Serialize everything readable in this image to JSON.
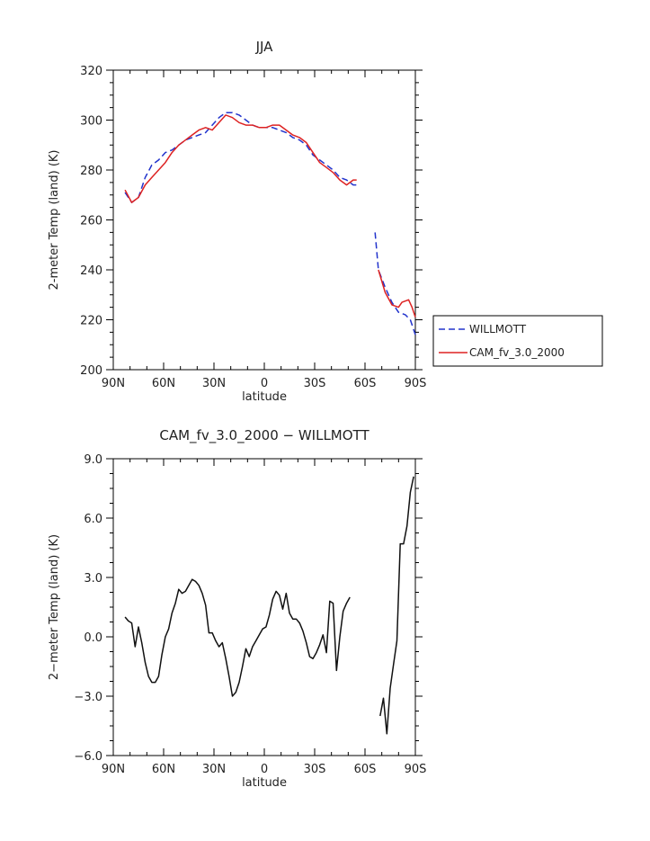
{
  "chart_data": [
    {
      "type": "line",
      "title": "JJA",
      "xlabel": "latitude",
      "ylabel": "2-meter Temp (land) (K)",
      "xlim": [
        90,
        -90
      ],
      "ylim": [
        200,
        320
      ],
      "x_ticks": [
        90,
        60,
        30,
        0,
        -30,
        -60,
        -90
      ],
      "x_tick_labels": [
        "90N",
        "60N",
        "30N",
        "0",
        "30S",
        "60S",
        "90S"
      ],
      "y_ticks": [
        200,
        220,
        240,
        260,
        280,
        300,
        320
      ],
      "y_tick_labels": [
        "200",
        "220",
        "240",
        "260",
        "280",
        "300",
        "320"
      ],
      "legend": "right",
      "series": [
        {
          "name": "WILLMOTT",
          "color": "#2233cc",
          "dash": "dashed",
          "segments": [
            [
              [
                83,
                271
              ],
              [
                79,
                267
              ],
              [
                75,
                269
              ],
              [
                71,
                277
              ],
              [
                67,
                282
              ],
              [
                63,
                284
              ],
              [
                59,
                287
              ],
              [
                55,
                288
              ],
              [
                51,
                290
              ],
              [
                47,
                292
              ],
              [
                43,
                293
              ],
              [
                39,
                294
              ],
              [
                35,
                295
              ],
              [
                31,
                298
              ],
              [
                27,
                301
              ],
              [
                23,
                303
              ],
              [
                19,
                303
              ],
              [
                15,
                302
              ],
              [
                11,
                300
              ],
              [
                7,
                298
              ],
              [
                3,
                297
              ],
              [
                -1,
                297
              ],
              [
                -5,
                297
              ],
              [
                -9,
                296
              ],
              [
                -13,
                295
              ],
              [
                -17,
                293
              ],
              [
                -21,
                292
              ],
              [
                -25,
                290
              ],
              [
                -29,
                286
              ],
              [
                -33,
                284
              ],
              [
                -37,
                282
              ],
              [
                -41,
                280
              ],
              [
                -45,
                277
              ],
              [
                -49,
                276
              ],
              [
                -53,
                274
              ],
              [
                -55,
                274
              ]
            ],
            [
              [
                -66,
                255
              ],
              [
                -68,
                240
              ],
              [
                -72,
                233
              ],
              [
                -76,
                227
              ],
              [
                -80,
                223
              ],
              [
                -84,
                222
              ],
              [
                -87,
                220
              ],
              [
                -90,
                214
              ]
            ]
          ]
        },
        {
          "name": "CAM_fv_3.0_2000",
          "color": "#dd2222",
          "dash": "solid",
          "segments": [
            [
              [
                83,
                272
              ],
              [
                79,
                267
              ],
              [
                75,
                269
              ],
              [
                71,
                274
              ],
              [
                67,
                277
              ],
              [
                63,
                280
              ],
              [
                59,
                283
              ],
              [
                55,
                287
              ],
              [
                51,
                290
              ],
              [
                47,
                292
              ],
              [
                43,
                294
              ],
              [
                39,
                296
              ],
              [
                35,
                297
              ],
              [
                31,
                296
              ],
              [
                27,
                299
              ],
              [
                23,
                302
              ],
              [
                19,
                301
              ],
              [
                15,
                299
              ],
              [
                11,
                298
              ],
              [
                7,
                298
              ],
              [
                3,
                297
              ],
              [
                -1,
                297
              ],
              [
                -5,
                298
              ],
              [
                -9,
                298
              ],
              [
                -13,
                296
              ],
              [
                -17,
                294
              ],
              [
                -21,
                293
              ],
              [
                -25,
                291
              ],
              [
                -29,
                287
              ],
              [
                -33,
                283
              ],
              [
                -37,
                281
              ],
              [
                -41,
                279
              ],
              [
                -45,
                276
              ],
              [
                -49,
                274
              ],
              [
                -53,
                276
              ],
              [
                -55,
                276
              ]
            ],
            [
              [
                -68,
                240
              ],
              [
                -72,
                231
              ],
              [
                -76,
                226
              ],
              [
                -80,
                225
              ],
              [
                -82,
                227
              ],
              [
                -86,
                228
              ],
              [
                -88,
                225
              ],
              [
                -90,
                221
              ]
            ]
          ]
        }
      ]
    },
    {
      "type": "line",
      "title": "CAM_fv_3.0_2000 − WILLMOTT",
      "xlabel": "latitude",
      "ylabel": "2−meter Temp (land) (K)",
      "xlim": [
        90,
        -90
      ],
      "ylim": [
        -6,
        9
      ],
      "x_ticks": [
        90,
        60,
        30,
        0,
        -30,
        -60,
        -90
      ],
      "x_tick_labels": [
        "90N",
        "60N",
        "30N",
        "0",
        "30S",
        "60S",
        "90S"
      ],
      "y_ticks": [
        -6,
        -3,
        0,
        3,
        6,
        9
      ],
      "y_tick_labels": [
        "−6.0",
        "−3.0",
        "0.0",
        "3.0",
        "6.0",
        "9.0"
      ],
      "series": [
        {
          "color": "#111111",
          "dash": "solid",
          "segments": [
            [
              [
                83,
                1.0
              ],
              [
                81,
                0.8
              ],
              [
                79,
                0.7
              ],
              [
                77,
                -0.5
              ],
              [
                75,
                0.5
              ],
              [
                73,
                -0.3
              ],
              [
                71,
                -1.3
              ],
              [
                69,
                -2.0
              ],
              [
                67,
                -2.3
              ],
              [
                65,
                -2.3
              ],
              [
                63,
                -2.0
              ],
              [
                61,
                -0.9
              ],
              [
                59,
                0.0
              ],
              [
                57,
                0.4
              ],
              [
                55,
                1.2
              ],
              [
                53,
                1.7
              ],
              [
                51,
                2.4
              ],
              [
                49,
                2.2
              ],
              [
                47,
                2.3
              ],
              [
                45,
                2.6
              ],
              [
                43,
                2.9
              ],
              [
                41,
                2.8
              ],
              [
                39,
                2.6
              ],
              [
                37,
                2.2
              ],
              [
                35,
                1.6
              ],
              [
                33,
                0.2
              ],
              [
                31,
                0.2
              ],
              [
                29,
                -0.2
              ],
              [
                27,
                -0.5
              ],
              [
                25,
                -0.3
              ],
              [
                23,
                -1.1
              ],
              [
                21,
                -2.0
              ],
              [
                19,
                -3.0
              ],
              [
                17,
                -2.8
              ],
              [
                15,
                -2.3
              ],
              [
                13,
                -1.5
              ],
              [
                11,
                -0.6
              ],
              [
                9,
                -1.0
              ],
              [
                7,
                -0.5
              ],
              [
                5,
                -0.2
              ],
              [
                3,
                0.1
              ],
              [
                1,
                0.4
              ],
              [
                -1,
                0.5
              ],
              [
                -3,
                1.1
              ],
              [
                -5,
                1.9
              ],
              [
                -7,
                2.3
              ],
              [
                -9,
                2.1
              ],
              [
                -11,
                1.4
              ],
              [
                -13,
                2.2
              ],
              [
                -15,
                1.2
              ],
              [
                -17,
                0.9
              ],
              [
                -19,
                0.9
              ],
              [
                -21,
                0.7
              ],
              [
                -23,
                0.3
              ],
              [
                -25,
                -0.3
              ],
              [
                -27,
                -1.0
              ],
              [
                -29,
                -1.1
              ],
              [
                -31,
                -0.8
              ],
              [
                -33,
                -0.4
              ],
              [
                -35,
                0.1
              ],
              [
                -37,
                -0.8
              ],
              [
                -39,
                1.8
              ],
              [
                -41,
                1.7
              ],
              [
                -43,
                -1.7
              ],
              [
                -45,
                0.0
              ],
              [
                -47,
                1.3
              ],
              [
                -49,
                1.7
              ],
              [
                -51,
                2.0
              ]
            ],
            [
              [
                -69,
                -4.0
              ],
              [
                -71,
                -3.1
              ],
              [
                -73,
                -4.9
              ],
              [
                -75,
                -2.6
              ],
              [
                -77,
                -1.4
              ],
              [
                -79,
                -0.2
              ],
              [
                -81,
                4.7
              ],
              [
                -83,
                4.7
              ],
              [
                -85,
                5.6
              ],
              [
                -87,
                7.3
              ],
              [
                -89,
                8.1
              ]
            ]
          ]
        }
      ]
    }
  ]
}
